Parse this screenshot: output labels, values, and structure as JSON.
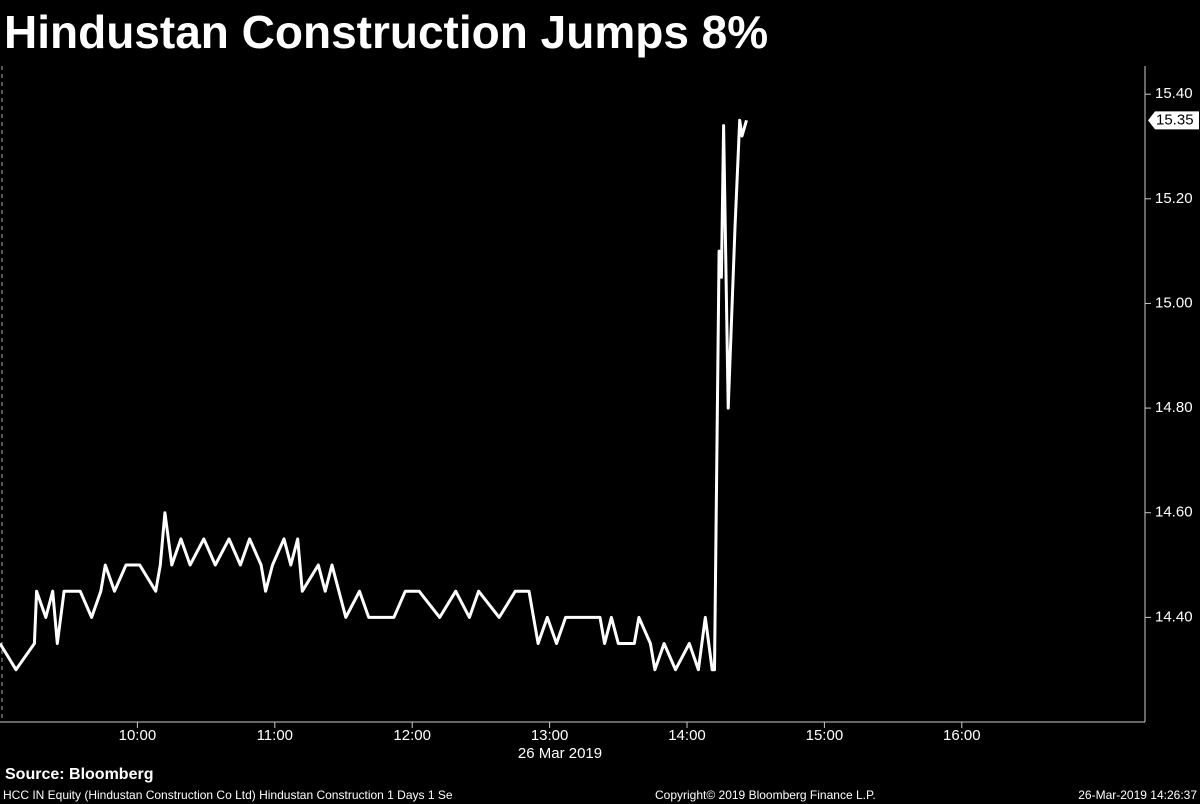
{
  "chart_data": {
    "type": "line",
    "title": "Hindustan Construction Jumps 8%",
    "source": "Source: Bloomberg",
    "x_label": "26 Mar 2019",
    "footer_left": "HCC IN Equity (Hindustan Construction Co Ltd) Hindustan Construction 1 Days 1 Se",
    "footer_center": "Copyright© 2019 Bloomberg Finance L.P.",
    "footer_right": "26-Mar-2019 14:26:37",
    "x": [
      "09:00",
      "09:07",
      "09:15",
      "09:16",
      "09:20",
      "09:23",
      "09:25",
      "09:28",
      "09:35",
      "09:40",
      "09:44",
      "09:46",
      "09:50",
      "09:55",
      "10:01",
      "10:08",
      "10:10",
      "10:12",
      "10:15",
      "10:19",
      "10:23",
      "10:29",
      "10:34",
      "10:40",
      "10:45",
      "10:49",
      "10:54",
      "10:56",
      "10:59",
      "11:04",
      "11:07",
      "11:10",
      "11:12",
      "11:19",
      "11:22",
      "11:25",
      "11:28",
      "11:31",
      "11:37",
      "11:41",
      "11:52",
      "11:57",
      "12:03",
      "12:12",
      "12:19",
      "12:25",
      "12:29",
      "12:38",
      "12:45",
      "12:51",
      "12:55",
      "12:59",
      "13:03",
      "13:07",
      "13:22",
      "13:24",
      "13:27",
      "13:30",
      "13:37",
      "13:39",
      "13:44",
      "13:46",
      "13:50",
      "13:55",
      "14:01",
      "14:05",
      "14:08",
      "14:11",
      "14:12",
      "14:14",
      "14:15",
      "14:16",
      "14:18",
      "14:21",
      "14:23",
      "14:24",
      "14:26"
    ],
    "series": [
      {
        "color": "#ffffff",
        "values": [
          14.35,
          14.3,
          14.35,
          14.45,
          14.4,
          14.45,
          14.35,
          14.45,
          14.45,
          14.4,
          14.45,
          14.5,
          14.45,
          14.5,
          14.5,
          14.45,
          14.5,
          14.6,
          14.5,
          14.55,
          14.5,
          14.55,
          14.5,
          14.55,
          14.5,
          14.55,
          14.5,
          14.45,
          14.5,
          14.55,
          14.5,
          14.55,
          14.45,
          14.5,
          14.45,
          14.5,
          14.45,
          14.4,
          14.45,
          14.4,
          14.4,
          14.45,
          14.45,
          14.4,
          14.45,
          14.4,
          14.45,
          14.4,
          14.45,
          14.45,
          14.35,
          14.4,
          14.35,
          14.4,
          14.4,
          14.35,
          14.4,
          14.35,
          14.35,
          14.4,
          14.35,
          14.3,
          14.35,
          14.3,
          14.35,
          14.3,
          14.4,
          14.3,
          14.3,
          15.1,
          15.05,
          15.34,
          14.8,
          15.15,
          15.35,
          15.32,
          15.35
        ]
      }
    ],
    "last_price": 15.35,
    "xlim": [
      "09:00",
      "17:20"
    ],
    "xticks": [
      "10:00",
      "11:00",
      "12:00",
      "13:00",
      "14:00",
      "15:00",
      "16:00"
    ],
    "ylim": [
      14.2,
      15.45
    ],
    "yticks": [
      {
        "value": 14.4,
        "label": "14.40"
      },
      {
        "value": 14.6,
        "label": "14.60"
      },
      {
        "value": 14.8,
        "label": "14.80"
      },
      {
        "value": 15.0,
        "label": "15.00"
      },
      {
        "value": 15.2,
        "label": "15.20"
      },
      {
        "value": 15.4,
        "label": "15.40"
      }
    ]
  }
}
